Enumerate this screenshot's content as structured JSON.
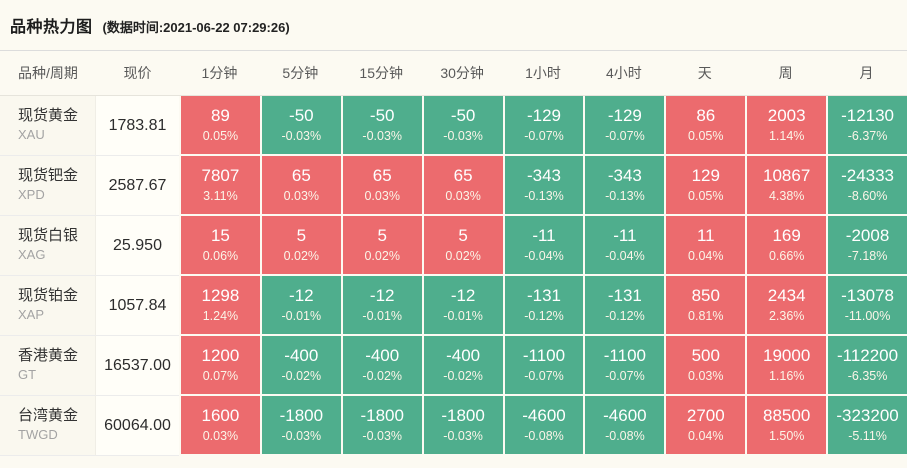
{
  "header": {
    "title": "品种热力图",
    "timestamp": "(数据时间:2021-06-22 07:29:26)"
  },
  "colors": {
    "up": "#ec6b6e",
    "down": "#4fae8d"
  },
  "table": {
    "columns": [
      "品种/周期",
      "现价",
      "1分钟",
      "5分钟",
      "15分钟",
      "30分钟",
      "1小时",
      "4小时",
      "天",
      "周",
      "月"
    ],
    "rows": [
      {
        "name": "现货黄金",
        "code": "XAU",
        "price": "1783.81",
        "cells": [
          {
            "value": "89",
            "pct": "0.05%",
            "dir": "up"
          },
          {
            "value": "-50",
            "pct": "-0.03%",
            "dir": "down"
          },
          {
            "value": "-50",
            "pct": "-0.03%",
            "dir": "down"
          },
          {
            "value": "-50",
            "pct": "-0.03%",
            "dir": "down"
          },
          {
            "value": "-129",
            "pct": "-0.07%",
            "dir": "down"
          },
          {
            "value": "-129",
            "pct": "-0.07%",
            "dir": "down"
          },
          {
            "value": "86",
            "pct": "0.05%",
            "dir": "up"
          },
          {
            "value": "2003",
            "pct": "1.14%",
            "dir": "up"
          },
          {
            "value": "-12130",
            "pct": "-6.37%",
            "dir": "down"
          }
        ]
      },
      {
        "name": "现货钯金",
        "code": "XPD",
        "price": "2587.67",
        "cells": [
          {
            "value": "7807",
            "pct": "3.11%",
            "dir": "up"
          },
          {
            "value": "65",
            "pct": "0.03%",
            "dir": "up"
          },
          {
            "value": "65",
            "pct": "0.03%",
            "dir": "up"
          },
          {
            "value": "65",
            "pct": "0.03%",
            "dir": "up"
          },
          {
            "value": "-343",
            "pct": "-0.13%",
            "dir": "down"
          },
          {
            "value": "-343",
            "pct": "-0.13%",
            "dir": "down"
          },
          {
            "value": "129",
            "pct": "0.05%",
            "dir": "up"
          },
          {
            "value": "10867",
            "pct": "4.38%",
            "dir": "up"
          },
          {
            "value": "-24333",
            "pct": "-8.60%",
            "dir": "down"
          }
        ]
      },
      {
        "name": "现货白银",
        "code": "XAG",
        "price": "25.950",
        "cells": [
          {
            "value": "15",
            "pct": "0.06%",
            "dir": "up"
          },
          {
            "value": "5",
            "pct": "0.02%",
            "dir": "up"
          },
          {
            "value": "5",
            "pct": "0.02%",
            "dir": "up"
          },
          {
            "value": "5",
            "pct": "0.02%",
            "dir": "up"
          },
          {
            "value": "-11",
            "pct": "-0.04%",
            "dir": "down"
          },
          {
            "value": "-11",
            "pct": "-0.04%",
            "dir": "down"
          },
          {
            "value": "11",
            "pct": "0.04%",
            "dir": "up"
          },
          {
            "value": "169",
            "pct": "0.66%",
            "dir": "up"
          },
          {
            "value": "-2008",
            "pct": "-7.18%",
            "dir": "down"
          }
        ]
      },
      {
        "name": "现货铂金",
        "code": "XAP",
        "price": "1057.84",
        "cells": [
          {
            "value": "1298",
            "pct": "1.24%",
            "dir": "up"
          },
          {
            "value": "-12",
            "pct": "-0.01%",
            "dir": "down"
          },
          {
            "value": "-12",
            "pct": "-0.01%",
            "dir": "down"
          },
          {
            "value": "-12",
            "pct": "-0.01%",
            "dir": "down"
          },
          {
            "value": "-131",
            "pct": "-0.12%",
            "dir": "down"
          },
          {
            "value": "-131",
            "pct": "-0.12%",
            "dir": "down"
          },
          {
            "value": "850",
            "pct": "0.81%",
            "dir": "up"
          },
          {
            "value": "2434",
            "pct": "2.36%",
            "dir": "up"
          },
          {
            "value": "-13078",
            "pct": "-11.00%",
            "dir": "down"
          }
        ]
      },
      {
        "name": "香港黄金",
        "code": "GT",
        "price": "16537.00",
        "cells": [
          {
            "value": "1200",
            "pct": "0.07%",
            "dir": "up"
          },
          {
            "value": "-400",
            "pct": "-0.02%",
            "dir": "down"
          },
          {
            "value": "-400",
            "pct": "-0.02%",
            "dir": "down"
          },
          {
            "value": "-400",
            "pct": "-0.02%",
            "dir": "down"
          },
          {
            "value": "-1100",
            "pct": "-0.07%",
            "dir": "down"
          },
          {
            "value": "-1100",
            "pct": "-0.07%",
            "dir": "down"
          },
          {
            "value": "500",
            "pct": "0.03%",
            "dir": "up"
          },
          {
            "value": "19000",
            "pct": "1.16%",
            "dir": "up"
          },
          {
            "value": "-112200",
            "pct": "-6.35%",
            "dir": "down"
          }
        ]
      },
      {
        "name": "台湾黄金",
        "code": "TWGD",
        "price": "60064.00",
        "cells": [
          {
            "value": "1600",
            "pct": "0.03%",
            "dir": "up"
          },
          {
            "value": "-1800",
            "pct": "-0.03%",
            "dir": "down"
          },
          {
            "value": "-1800",
            "pct": "-0.03%",
            "dir": "down"
          },
          {
            "value": "-1800",
            "pct": "-0.03%",
            "dir": "down"
          },
          {
            "value": "-4600",
            "pct": "-0.08%",
            "dir": "down"
          },
          {
            "value": "-4600",
            "pct": "-0.08%",
            "dir": "down"
          },
          {
            "value": "2700",
            "pct": "0.04%",
            "dir": "up"
          },
          {
            "value": "88500",
            "pct": "1.50%",
            "dir": "up"
          },
          {
            "value": "-323200",
            "pct": "-5.11%",
            "dir": "down"
          }
        ]
      }
    ]
  }
}
